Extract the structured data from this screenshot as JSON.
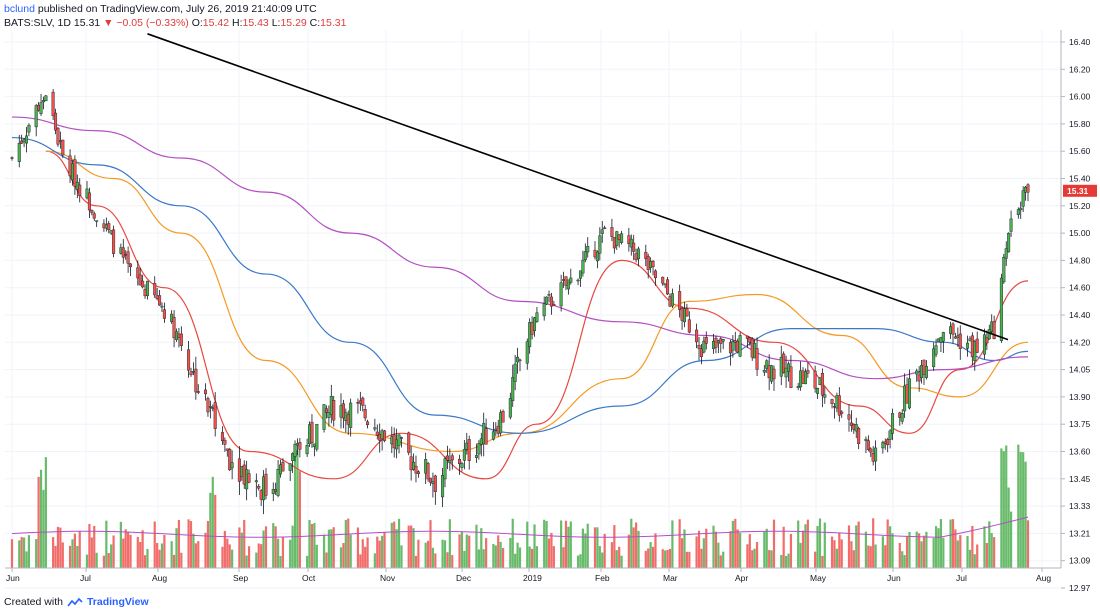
{
  "header": {
    "user": "bclund",
    "published": "published on TradingView.com, July 26, 2019 21:40:09 UTC",
    "symbol": "BATS:SLV, 1D",
    "last": "15.31",
    "change_arrow": "▼",
    "change": "−0.05 (−0.33%)",
    "o_label": "O:",
    "o_value": "15.42",
    "h_label": "H:",
    "h_value": "15.43",
    "l_label": "L:",
    "l_value": "15.29",
    "c_label": "C:",
    "c_value": "15.31"
  },
  "footer": {
    "created_with": "Created with",
    "brand": "TradingView",
    "logo_icon": "tradingview-logo-icon"
  },
  "colors": {
    "up": "#4caf50",
    "down": "#ef5350",
    "ma_red": "#e8483f",
    "ma_orange": "#f59a23",
    "ma_blue": "#3a79c9",
    "ma_purple": "#b44fc2",
    "trendline": "#000000",
    "last_price_tag": "#e53935"
  },
  "chart_data": {
    "type": "candlestick",
    "title": "",
    "price_axis": {
      "side": "right",
      "ticks": [
        "16.40",
        "16.20",
        "16.00",
        "15.80",
        "15.60",
        "15.40",
        "15.20",
        "15.00",
        "14.80",
        "14.60",
        "14.40",
        "14.20",
        "14.05",
        "13.90",
        "13.75",
        "13.60",
        "13.45",
        "13.33",
        "13.21",
        "13.09",
        "12.97"
      ]
    },
    "last_price_label": "15.31",
    "time_axis": {
      "ticks": [
        "Jun",
        "Jul",
        "Aug",
        "Sep",
        "Oct",
        "Nov",
        "Dec",
        "2019",
        "Feb",
        "Mar",
        "Apr",
        "May",
        "Jun",
        "Jul",
        "Aug"
      ]
    },
    "price_anchors": [
      [
        "2018-06-01",
        15.55
      ],
      [
        "2018-06-15",
        16.05
      ],
      [
        "2018-06-22",
        15.55
      ],
      [
        "2018-07-06",
        15.15
      ],
      [
        "2018-07-20",
        14.7
      ],
      [
        "2018-08-03",
        14.45
      ],
      [
        "2018-08-17",
        13.95
      ],
      [
        "2018-08-31",
        13.55
      ],
      [
        "2018-09-14",
        13.4
      ],
      [
        "2018-09-28",
        13.6
      ],
      [
        "2018-10-12",
        13.85
      ],
      [
        "2018-10-26",
        13.8
      ],
      [
        "2018-11-09",
        13.6
      ],
      [
        "2018-11-23",
        13.45
      ],
      [
        "2018-12-07",
        13.6
      ],
      [
        "2018-12-21",
        13.8
      ],
      [
        "2019-01-04",
        14.4
      ],
      [
        "2019-01-18",
        14.65
      ],
      [
        "2019-02-01",
        15.0
      ],
      [
        "2019-02-15",
        14.85
      ],
      [
        "2019-03-01",
        14.5
      ],
      [
        "2019-03-15",
        14.15
      ],
      [
        "2019-03-29",
        14.2
      ],
      [
        "2019-04-12",
        14.05
      ],
      [
        "2019-04-26",
        14.0
      ],
      [
        "2019-05-10",
        13.85
      ],
      [
        "2019-05-24",
        13.55
      ],
      [
        "2019-06-07",
        13.95
      ],
      [
        "2019-06-21",
        14.3
      ],
      [
        "2019-07-05",
        14.15
      ],
      [
        "2019-07-12",
        14.3
      ],
      [
        "2019-07-19",
        15.1
      ],
      [
        "2019-07-26",
        15.31
      ]
    ],
    "moving_averages": [
      {
        "color_key": "ma_red",
        "points": [
          [
            "2018-06-15",
            15.6
          ],
          [
            "2018-07-06",
            15.2
          ],
          [
            "2018-08-03",
            14.6
          ],
          [
            "2018-09-07",
            13.6
          ],
          [
            "2018-10-12",
            13.45
          ],
          [
            "2018-11-09",
            13.7
          ],
          [
            "2018-12-14",
            13.45
          ],
          [
            "2019-01-04",
            13.75
          ],
          [
            "2019-02-08",
            14.8
          ],
          [
            "2019-03-08",
            14.45
          ],
          [
            "2019-04-12",
            14.2
          ],
          [
            "2019-05-17",
            13.85
          ],
          [
            "2019-06-07",
            13.7
          ],
          [
            "2019-06-28",
            14.05
          ],
          [
            "2019-07-26",
            14.65
          ]
        ]
      },
      {
        "color_key": "ma_orange",
        "points": [
          [
            "2018-06-15",
            15.6
          ],
          [
            "2018-07-13",
            15.4
          ],
          [
            "2018-08-10",
            15.0
          ],
          [
            "2018-09-14",
            14.1
          ],
          [
            "2018-10-19",
            13.7
          ],
          [
            "2018-11-30",
            13.6
          ],
          [
            "2018-12-28",
            13.7
          ],
          [
            "2019-02-08",
            14.0
          ],
          [
            "2019-03-08",
            14.5
          ],
          [
            "2019-04-05",
            14.55
          ],
          [
            "2019-05-10",
            14.25
          ],
          [
            "2019-06-07",
            13.95
          ],
          [
            "2019-06-28",
            13.9
          ],
          [
            "2019-07-26",
            14.2
          ]
        ]
      },
      {
        "color_key": "ma_blue",
        "points": [
          [
            "2018-06-01",
            15.7
          ],
          [
            "2018-07-06",
            15.5
          ],
          [
            "2018-08-10",
            15.2
          ],
          [
            "2018-09-14",
            14.7
          ],
          [
            "2018-10-19",
            14.2
          ],
          [
            "2018-11-23",
            13.8
          ],
          [
            "2018-12-28",
            13.7
          ],
          [
            "2019-02-08",
            13.85
          ],
          [
            "2019-03-15",
            14.1
          ],
          [
            "2019-04-19",
            14.3
          ],
          [
            "2019-05-24",
            14.3
          ],
          [
            "2019-06-21",
            14.2
          ],
          [
            "2019-07-12",
            14.1
          ],
          [
            "2019-07-26",
            14.15
          ]
        ]
      },
      {
        "color_key": "ma_purple",
        "points": [
          [
            "2018-06-01",
            15.85
          ],
          [
            "2018-07-06",
            15.75
          ],
          [
            "2018-08-10",
            15.55
          ],
          [
            "2018-09-14",
            15.3
          ],
          [
            "2018-10-19",
            15.0
          ],
          [
            "2018-11-23",
            14.75
          ],
          [
            "2018-12-28",
            14.5
          ],
          [
            "2019-02-08",
            14.35
          ],
          [
            "2019-03-15",
            14.25
          ],
          [
            "2019-04-19",
            14.1
          ],
          [
            "2019-05-24",
            14.0
          ],
          [
            "2019-06-21",
            14.05
          ],
          [
            "2019-07-26",
            14.12
          ]
        ]
      }
    ],
    "trendline": {
      "from": [
        "2018-07-27",
        16.46
      ],
      "to": [
        "2019-07-26",
        14.22
      ]
    },
    "volume": {
      "ma_level_ratio": 0.55,
      "spike_dates": [
        "2018-06-14",
        "2018-08-24",
        "2018-09-28",
        "2019-07-16",
        "2019-07-22"
      ]
    },
    "grid": true,
    "legend": false
  }
}
